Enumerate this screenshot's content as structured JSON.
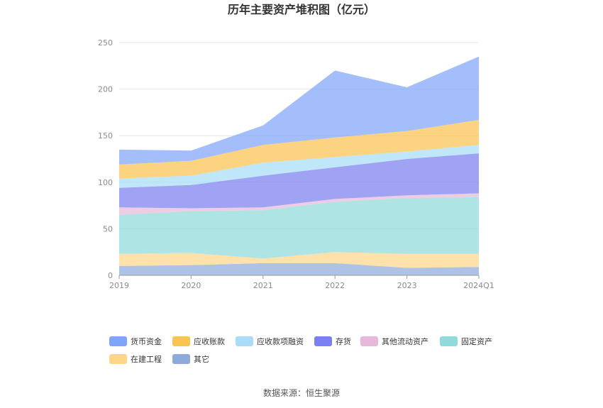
{
  "chart_data": {
    "type": "area",
    "stacked": true,
    "title": "历年主要资产堆积图（亿元）",
    "categories": [
      "2019",
      "2020",
      "2021",
      "2022",
      "2023",
      "2024Q1"
    ],
    "ylim": [
      0,
      250
    ],
    "yticks": [
      0,
      50,
      100,
      150,
      200,
      250
    ],
    "grid": true,
    "legend_position": "bottom",
    "series": [
      {
        "name": "其它",
        "color": "#8eaad9",
        "values": [
          10,
          11,
          13,
          13,
          8,
          9
        ]
      },
      {
        "name": "在建工程",
        "color": "#ffd58a",
        "values": [
          13,
          13,
          5,
          12,
          15,
          14
        ]
      },
      {
        "name": "固定资产",
        "color": "#8fdada",
        "values": [
          42,
          45,
          52,
          54,
          60,
          61
        ]
      },
      {
        "name": "其他流动资产",
        "color": "#e8b8da",
        "values": [
          8,
          3,
          3,
          3,
          3,
          4
        ]
      },
      {
        "name": "存货",
        "color": "#7b7ff0",
        "values": [
          21,
          25,
          34,
          34,
          39,
          43
        ]
      },
      {
        "name": "应收款项融资",
        "color": "#a8dcf7",
        "values": [
          10,
          10,
          14,
          11,
          8,
          9
        ]
      },
      {
        "name": "应收账款",
        "color": "#fbc451",
        "values": [
          15,
          16,
          19,
          21,
          22,
          27
        ]
      },
      {
        "name": "货币资金",
        "color": "#7fa5f8",
        "values": [
          16,
          11,
          21,
          72,
          47,
          68
        ]
      }
    ]
  },
  "source": "数据来源：恒生聚源"
}
